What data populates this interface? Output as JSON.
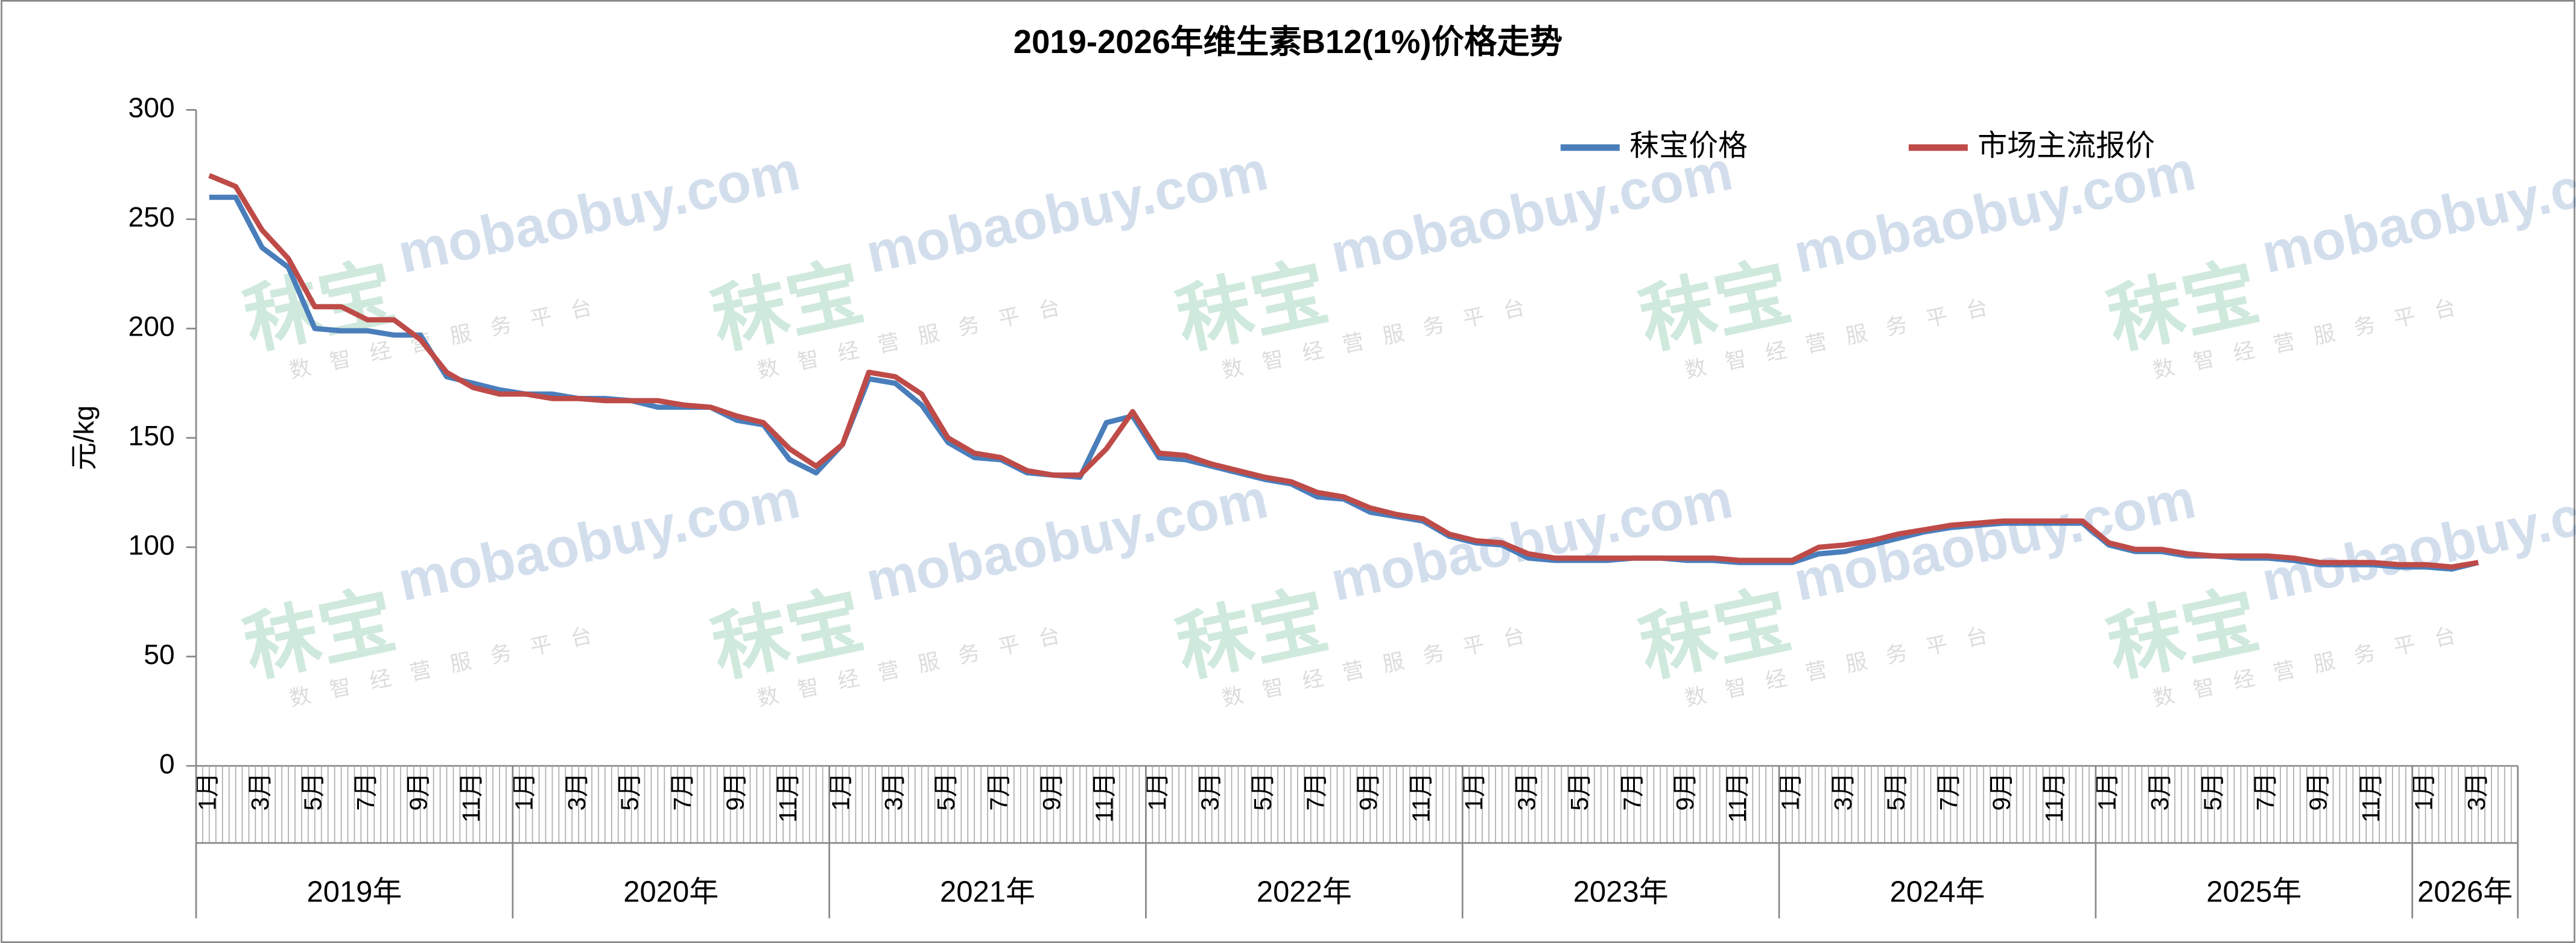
{
  "chart_data": {
    "type": "line",
    "title": "2019-2026年维生素B12(1%)价格走势",
    "y_label": "元/kg",
    "categories": [
      "1月",
      null,
      "3月",
      null,
      "5月",
      null,
      "7月",
      null,
      "9月",
      null,
      "11月",
      null,
      "1月",
      null,
      "3月",
      null,
      "5月",
      null,
      "7月",
      null,
      "9月",
      null,
      "11月",
      null,
      "1月",
      null,
      "3月",
      null,
      "5月",
      null,
      "7月",
      null,
      "9月",
      null,
      "11月",
      null,
      "1月",
      null,
      "3月",
      null,
      "5月",
      null,
      "7月",
      null,
      "9月",
      null,
      "11月",
      null,
      "1月",
      null,
      "3月",
      null,
      "5月",
      null,
      "7月",
      null,
      "9月",
      null,
      "11月",
      null,
      "1月",
      null,
      "3月",
      null,
      "5月",
      null,
      "7月",
      null,
      "9月",
      null,
      "11月",
      null,
      "1月",
      null,
      "3月",
      null,
      "5月",
      null,
      "7月",
      null,
      "9月",
      null,
      "11月",
      null,
      "1月",
      null,
      "3月",
      null
    ],
    "years": [
      "2019年",
      "2020年",
      "2021年",
      "2022年",
      "2023年",
      "2024年",
      "2025年",
      "2026年"
    ],
    "series": [
      {
        "name": "秣宝价格",
        "color": "#4a7ebb",
        "values": [
          260,
          260,
          237,
          228,
          200,
          199,
          199,
          197,
          197,
          178,
          175,
          172,
          170,
          170,
          168,
          168,
          167,
          164,
          164,
          164,
          158,
          156,
          140,
          134,
          147,
          177,
          175,
          165,
          148,
          141,
          140,
          134,
          133,
          132,
          157,
          160,
          141,
          140,
          137,
          134,
          131,
          129,
          123,
          122,
          116,
          114,
          112,
          105,
          102,
          101,
          95,
          94,
          94,
          94,
          95,
          95,
          94,
          94,
          93,
          93,
          93,
          97,
          98,
          101,
          104,
          107,
          109,
          110,
          111,
          111,
          111,
          111,
          101,
          98,
          98,
          96,
          96,
          95,
          95,
          94,
          92,
          92,
          92,
          91,
          91,
          90,
          93,
          null
        ]
      },
      {
        "name": "市场主流报价",
        "color": "#be4b48",
        "values": [
          270,
          265,
          245,
          232,
          210,
          210,
          204,
          204,
          195,
          180,
          173,
          170,
          170,
          168,
          168,
          167,
          167,
          167,
          165,
          164,
          160,
          157,
          145,
          137,
          147,
          180,
          178,
          170,
          150,
          143,
          141,
          135,
          133,
          133,
          145,
          162,
          143,
          142,
          138,
          135,
          132,
          130,
          125,
          123,
          118,
          115,
          113,
          106,
          103,
          102,
          97,
          95,
          95,
          95,
          95,
          95,
          95,
          95,
          94,
          94,
          94,
          100,
          101,
          103,
          106,
          108,
          110,
          111,
          112,
          112,
          112,
          112,
          102,
          99,
          99,
          97,
          96,
          96,
          96,
          95,
          93,
          93,
          93,
          92,
          92,
          91,
          93,
          null
        ]
      }
    ],
    "ylim": [
      0,
      300
    ],
    "yticks": [
      0,
      50,
      100,
      150,
      200,
      250,
      300
    ],
    "legend": "top-right",
    "watermark": {
      "brand": "秣宝",
      "domain": "mobaobuy.com",
      "slogan": "数智经营服务平台"
    }
  }
}
